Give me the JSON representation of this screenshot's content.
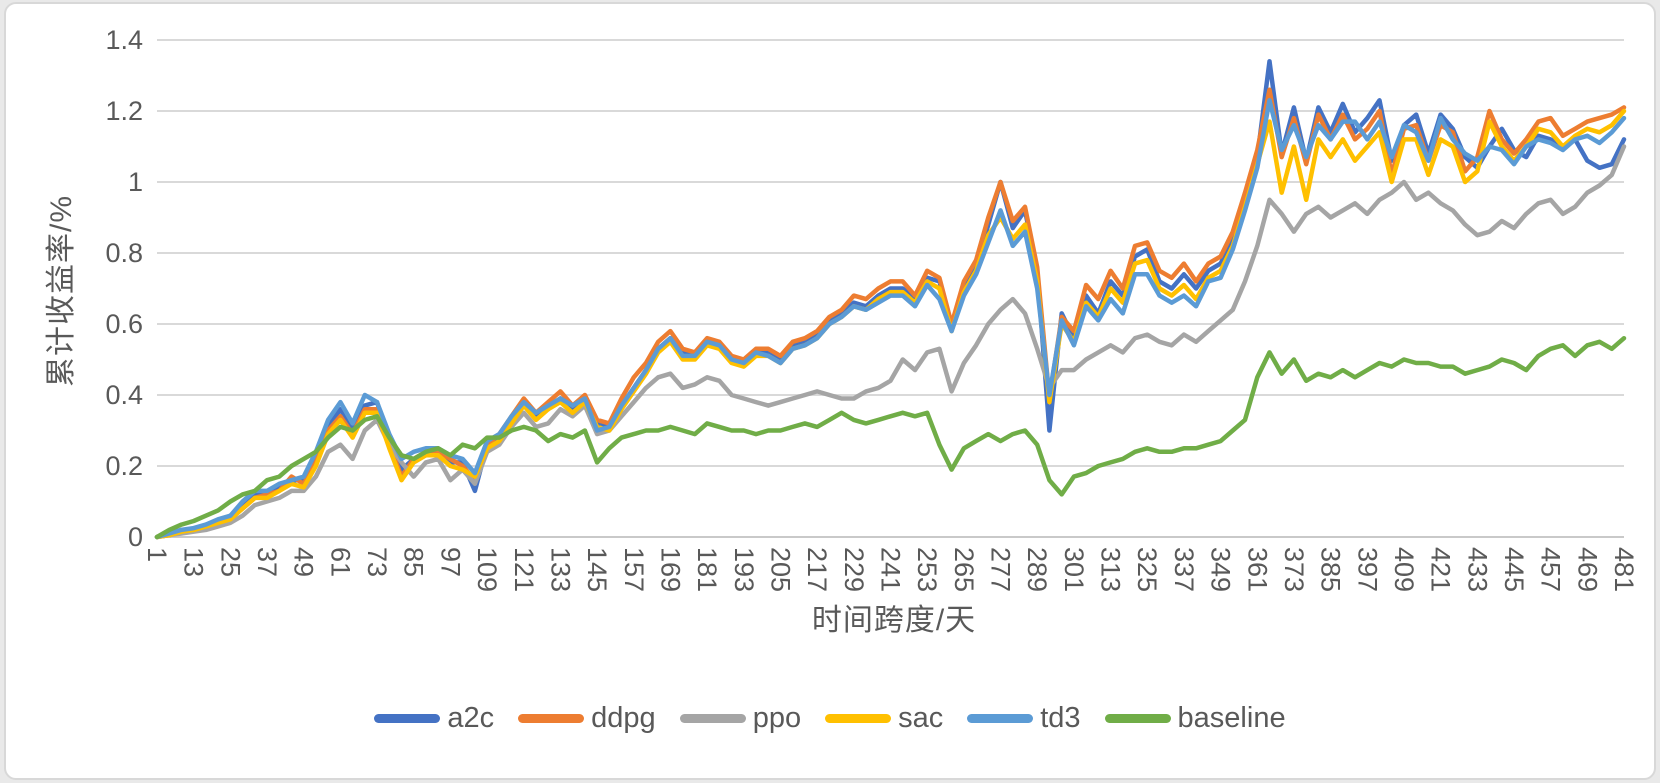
{
  "chart_data": {
    "type": "line",
    "title": "",
    "xlabel": "时间跨度/天",
    "ylabel": "累计收益率/%",
    "x_domain": [
      1,
      481
    ],
    "ylim": [
      0,
      1.4
    ],
    "grid": true,
    "grid_color": "#d9d9d9",
    "axis_line_color": "#c9c9c9",
    "axis_text_color": "#595959",
    "legend_position": "bottom",
    "y_ticks": [
      0,
      0.2,
      0.4,
      0.6,
      0.8,
      1,
      1.2,
      1.4
    ],
    "y_tick_labels": [
      "0",
      "0.2",
      "0.4",
      "0.6",
      "0.8",
      "1",
      "1.2",
      "1.4"
    ],
    "x_tick_step": 12,
    "x_tick_labels": [
      "1",
      "13",
      "25",
      "37",
      "49",
      "61",
      "73",
      "85",
      "97",
      "109",
      "121",
      "133",
      "145",
      "157",
      "169",
      "181",
      "193",
      "205",
      "217",
      "229",
      "241",
      "253",
      "265",
      "277",
      "289",
      "301",
      "313",
      "325",
      "337",
      "349",
      "361",
      "373",
      "385",
      "397",
      "409",
      "421",
      "433",
      "445",
      "457",
      "469",
      "481"
    ],
    "x": [
      1,
      5,
      9,
      13,
      17,
      21,
      25,
      29,
      33,
      37,
      41,
      45,
      49,
      53,
      57,
      61,
      65,
      69,
      73,
      77,
      81,
      85,
      89,
      93,
      97,
      101,
      105,
      109,
      113,
      117,
      121,
      125,
      129,
      133,
      137,
      141,
      145,
      149,
      153,
      157,
      161,
      165,
      169,
      173,
      177,
      181,
      185,
      189,
      193,
      197,
      201,
      205,
      209,
      213,
      217,
      221,
      225,
      229,
      233,
      237,
      241,
      245,
      249,
      253,
      257,
      261,
      265,
      269,
      273,
      277,
      281,
      285,
      289,
      293,
      297,
      301,
      305,
      309,
      313,
      317,
      321,
      325,
      329,
      333,
      337,
      341,
      345,
      349,
      353,
      357,
      361,
      365,
      369,
      373,
      377,
      381,
      385,
      389,
      393,
      397,
      401,
      405,
      409,
      413,
      417,
      421,
      425,
      429,
      433,
      437,
      441,
      445,
      449,
      453,
      457,
      461,
      465,
      469,
      473,
      477,
      481
    ],
    "series": [
      {
        "name": "a2c",
        "color": "#4472C4",
        "values": [
          0,
          0.01,
          0.02,
          0.02,
          0.03,
          0.04,
          0.06,
          0.09,
          0.12,
          0.12,
          0.14,
          0.16,
          0.16,
          0.22,
          0.31,
          0.36,
          0.3,
          0.37,
          0.38,
          0.27,
          0.19,
          0.22,
          0.23,
          0.24,
          0.21,
          0.21,
          0.13,
          0.26,
          0.28,
          0.33,
          0.38,
          0.34,
          0.36,
          0.39,
          0.36,
          0.38,
          0.32,
          0.31,
          0.37,
          0.42,
          0.47,
          0.53,
          0.56,
          0.52,
          0.51,
          0.55,
          0.54,
          0.5,
          0.49,
          0.52,
          0.52,
          0.5,
          0.54,
          0.55,
          0.57,
          0.61,
          0.63,
          0.66,
          0.65,
          0.68,
          0.7,
          0.7,
          0.67,
          0.73,
          0.72,
          0.59,
          0.7,
          0.76,
          0.88,
          1.0,
          0.87,
          0.92,
          0.75,
          0.3,
          0.63,
          0.56,
          0.68,
          0.63,
          0.72,
          0.68,
          0.79,
          0.81,
          0.72,
          0.7,
          0.74,
          0.7,
          0.75,
          0.77,
          0.84,
          0.95,
          1.07,
          1.34,
          1.08,
          1.21,
          1.06,
          1.21,
          1.14,
          1.22,
          1.14,
          1.18,
          1.23,
          1.06,
          1.16,
          1.19,
          1.08,
          1.19,
          1.15,
          1.07,
          1.04,
          1.1,
          1.15,
          1.09,
          1.07,
          1.13,
          1.12,
          1.1,
          1.12,
          1.06,
          1.04,
          1.05,
          1.12
        ]
      },
      {
        "name": "ddpg",
        "color": "#ED7D31",
        "values": [
          0,
          0.005,
          0.015,
          0.02,
          0.025,
          0.04,
          0.055,
          0.08,
          0.11,
          0.12,
          0.13,
          0.17,
          0.15,
          0.21,
          0.3,
          0.34,
          0.29,
          0.36,
          0.36,
          0.26,
          0.17,
          0.22,
          0.24,
          0.24,
          0.22,
          0.2,
          0.16,
          0.26,
          0.29,
          0.34,
          0.39,
          0.35,
          0.38,
          0.41,
          0.37,
          0.4,
          0.33,
          0.32,
          0.39,
          0.45,
          0.49,
          0.55,
          0.58,
          0.53,
          0.52,
          0.56,
          0.55,
          0.51,
          0.5,
          0.53,
          0.53,
          0.51,
          0.55,
          0.56,
          0.58,
          0.62,
          0.64,
          0.68,
          0.67,
          0.7,
          0.72,
          0.72,
          0.68,
          0.75,
          0.73,
          0.6,
          0.72,
          0.78,
          0.9,
          1.0,
          0.89,
          0.93,
          0.76,
          0.39,
          0.62,
          0.58,
          0.71,
          0.67,
          0.75,
          0.7,
          0.82,
          0.83,
          0.75,
          0.73,
          0.77,
          0.72,
          0.77,
          0.79,
          0.86,
          0.97,
          1.09,
          1.26,
          1.07,
          1.18,
          1.05,
          1.19,
          1.12,
          1.19,
          1.12,
          1.15,
          1.2,
          1.02,
          1.15,
          1.16,
          1.06,
          1.16,
          1.14,
          1.03,
          1.07,
          1.2,
          1.12,
          1.08,
          1.12,
          1.17,
          1.18,
          1.13,
          1.15,
          1.17,
          1.18,
          1.19,
          1.21
        ]
      },
      {
        "name": "ppo",
        "color": "#A5A5A5",
        "values": [
          0,
          0.005,
          0.01,
          0.015,
          0.02,
          0.03,
          0.04,
          0.06,
          0.09,
          0.1,
          0.11,
          0.13,
          0.13,
          0.17,
          0.24,
          0.26,
          0.22,
          0.3,
          0.33,
          0.26,
          0.21,
          0.17,
          0.21,
          0.22,
          0.16,
          0.19,
          0.15,
          0.24,
          0.26,
          0.31,
          0.35,
          0.31,
          0.32,
          0.36,
          0.34,
          0.37,
          0.29,
          0.3,
          0.34,
          0.38,
          0.42,
          0.45,
          0.46,
          0.42,
          0.43,
          0.45,
          0.44,
          0.4,
          0.39,
          0.38,
          0.37,
          0.38,
          0.39,
          0.4,
          0.41,
          0.4,
          0.39,
          0.39,
          0.41,
          0.42,
          0.44,
          0.5,
          0.47,
          0.52,
          0.53,
          0.41,
          0.49,
          0.54,
          0.6,
          0.64,
          0.67,
          0.63,
          0.53,
          0.42,
          0.47,
          0.47,
          0.5,
          0.52,
          0.54,
          0.52,
          0.56,
          0.57,
          0.55,
          0.54,
          0.57,
          0.55,
          0.58,
          0.61,
          0.64,
          0.72,
          0.82,
          0.95,
          0.91,
          0.86,
          0.91,
          0.93,
          0.9,
          0.92,
          0.94,
          0.91,
          0.95,
          0.97,
          1.0,
          0.95,
          0.97,
          0.94,
          0.92,
          0.88,
          0.85,
          0.86,
          0.89,
          0.87,
          0.91,
          0.94,
          0.95,
          0.91,
          0.93,
          0.97,
          0.99,
          1.02,
          1.1
        ]
      },
      {
        "name": "sac",
        "color": "#FFC000",
        "values": [
          0,
          0.005,
          0.015,
          0.02,
          0.03,
          0.04,
          0.05,
          0.08,
          0.11,
          0.11,
          0.13,
          0.15,
          0.14,
          0.2,
          0.29,
          0.33,
          0.28,
          0.35,
          0.35,
          0.25,
          0.16,
          0.21,
          0.23,
          0.23,
          0.2,
          0.19,
          0.17,
          0.25,
          0.27,
          0.32,
          0.37,
          0.33,
          0.36,
          0.38,
          0.35,
          0.38,
          0.31,
          0.3,
          0.36,
          0.41,
          0.46,
          0.52,
          0.55,
          0.5,
          0.5,
          0.54,
          0.53,
          0.49,
          0.48,
          0.51,
          0.51,
          0.49,
          0.53,
          0.54,
          0.56,
          0.6,
          0.62,
          0.65,
          0.64,
          0.67,
          0.69,
          0.69,
          0.66,
          0.72,
          0.7,
          0.58,
          0.69,
          0.75,
          0.85,
          0.9,
          0.84,
          0.88,
          0.72,
          0.38,
          0.6,
          0.55,
          0.66,
          0.62,
          0.7,
          0.66,
          0.77,
          0.78,
          0.7,
          0.68,
          0.71,
          0.67,
          0.73,
          0.75,
          0.82,
          0.93,
          1.05,
          1.17,
          0.97,
          1.1,
          0.95,
          1.12,
          1.07,
          1.12,
          1.06,
          1.1,
          1.14,
          1.0,
          1.12,
          1.12,
          1.02,
          1.12,
          1.1,
          1.0,
          1.03,
          1.17,
          1.1,
          1.06,
          1.1,
          1.15,
          1.14,
          1.1,
          1.13,
          1.15,
          1.14,
          1.16,
          1.2
        ]
      },
      {
        "name": "td3",
        "color": "#5B9BD5",
        "values": [
          0,
          0.01,
          0.02,
          0.025,
          0.035,
          0.05,
          0.06,
          0.1,
          0.13,
          0.13,
          0.15,
          0.16,
          0.17,
          0.24,
          0.33,
          0.38,
          0.32,
          0.4,
          0.38,
          0.29,
          0.22,
          0.24,
          0.25,
          0.25,
          0.23,
          0.22,
          0.18,
          0.27,
          0.29,
          0.34,
          0.38,
          0.35,
          0.37,
          0.39,
          0.37,
          0.39,
          0.3,
          0.31,
          0.37,
          0.42,
          0.47,
          0.53,
          0.56,
          0.51,
          0.51,
          0.55,
          0.54,
          0.5,
          0.49,
          0.52,
          0.51,
          0.49,
          0.53,
          0.54,
          0.56,
          0.6,
          0.62,
          0.65,
          0.64,
          0.66,
          0.68,
          0.68,
          0.65,
          0.71,
          0.67,
          0.58,
          0.68,
          0.74,
          0.83,
          0.92,
          0.82,
          0.86,
          0.7,
          0.4,
          0.61,
          0.54,
          0.65,
          0.61,
          0.67,
          0.63,
          0.74,
          0.74,
          0.68,
          0.66,
          0.68,
          0.65,
          0.72,
          0.73,
          0.81,
          0.92,
          1.04,
          1.23,
          1.09,
          1.16,
          1.07,
          1.16,
          1.12,
          1.17,
          1.17,
          1.12,
          1.17,
          1.07,
          1.16,
          1.14,
          1.06,
          1.18,
          1.12,
          1.08,
          1.06,
          1.1,
          1.09,
          1.05,
          1.1,
          1.12,
          1.11,
          1.09,
          1.12,
          1.13,
          1.11,
          1.14,
          1.18
        ]
      },
      {
        "name": "baseline",
        "color": "#70AD47",
        "values": [
          0,
          0.02,
          0.035,
          0.045,
          0.06,
          0.075,
          0.1,
          0.12,
          0.13,
          0.16,
          0.17,
          0.2,
          0.22,
          0.24,
          0.28,
          0.31,
          0.3,
          0.33,
          0.34,
          0.28,
          0.23,
          0.22,
          0.24,
          0.25,
          0.23,
          0.26,
          0.25,
          0.28,
          0.28,
          0.3,
          0.31,
          0.3,
          0.27,
          0.29,
          0.28,
          0.3,
          0.21,
          0.25,
          0.28,
          0.29,
          0.3,
          0.3,
          0.31,
          0.3,
          0.29,
          0.32,
          0.31,
          0.3,
          0.3,
          0.29,
          0.3,
          0.3,
          0.31,
          0.32,
          0.31,
          0.33,
          0.35,
          0.33,
          0.32,
          0.33,
          0.34,
          0.35,
          0.34,
          0.35,
          0.26,
          0.19,
          0.25,
          0.27,
          0.29,
          0.27,
          0.29,
          0.3,
          0.26,
          0.16,
          0.12,
          0.17,
          0.18,
          0.2,
          0.21,
          0.22,
          0.24,
          0.25,
          0.24,
          0.24,
          0.25,
          0.25,
          0.26,
          0.27,
          0.3,
          0.33,
          0.45,
          0.52,
          0.46,
          0.5,
          0.44,
          0.46,
          0.45,
          0.47,
          0.45,
          0.47,
          0.49,
          0.48,
          0.5,
          0.49,
          0.49,
          0.48,
          0.48,
          0.46,
          0.47,
          0.48,
          0.5,
          0.49,
          0.47,
          0.51,
          0.53,
          0.54,
          0.51,
          0.54,
          0.55,
          0.53,
          0.56
        ]
      }
    ]
  }
}
